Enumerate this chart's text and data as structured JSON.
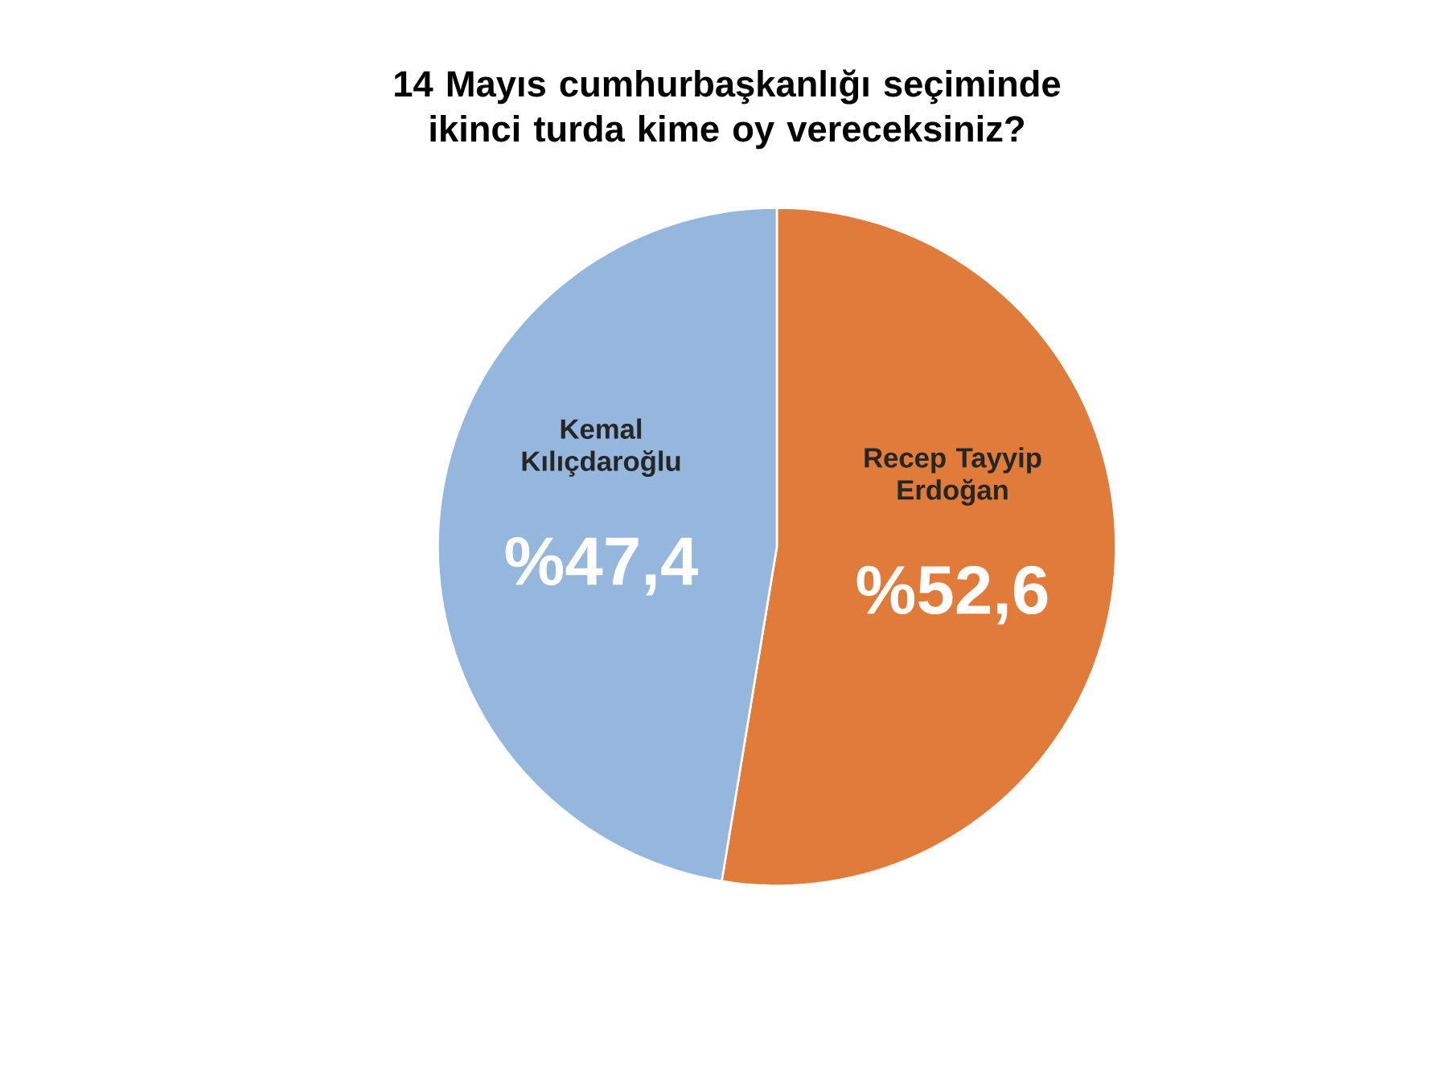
{
  "chart_data": {
    "type": "pie",
    "title": "14 Mayıs cumhurbaşkanlığı seçiminde ikinci turda kime oy vereceksiniz?",
    "categories": [
      "Recep Tayyip Erdoğan",
      "Kemal Kılıçdaroğlu"
    ],
    "values": [
      52.6,
      47.4
    ],
    "value_labels": [
      "%52,6",
      "%47,4"
    ],
    "colors": [
      "#e07b39",
      "#95b6dd"
    ]
  }
}
